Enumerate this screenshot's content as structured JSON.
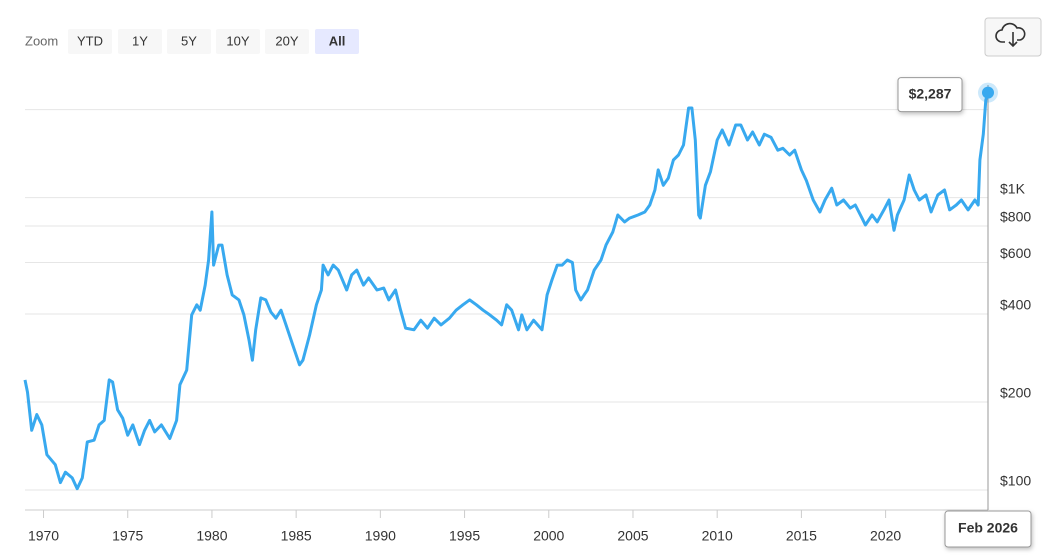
{
  "zoom": {
    "label": "Zoom",
    "buttons": [
      "YTD",
      "1Y",
      "5Y",
      "10Y",
      "20Y",
      "All"
    ],
    "active": "All"
  },
  "chart_data": {
    "type": "line",
    "log_y": true,
    "grid": true,
    "xlim": [
      1968.9,
      2026.08
    ],
    "ylim": [
      85.4,
      2429
    ],
    "xticks": [
      1970,
      1975,
      1980,
      1985,
      1990,
      1995,
      2000,
      2005,
      2010,
      2015,
      2020
    ],
    "yticks": [
      {
        "value": 100,
        "label": "$100"
      },
      {
        "value": 200,
        "label": "$200"
      },
      {
        "value": 400,
        "label": "$400"
      },
      {
        "value": 600,
        "label": "$600"
      },
      {
        "value": 800,
        "label": "$800"
      },
      {
        "value": 1000,
        "label": "$1K"
      },
      {
        "value": 2000,
        "label": null
      }
    ],
    "tooltip": {
      "label": "$2,287",
      "x_label": "Feb 2026"
    },
    "x": [
      1968.9,
      1969.05,
      1969.3,
      1969.6,
      1969.9,
      1970.2,
      1970.7,
      1971.0,
      1971.3,
      1971.7,
      1972.0,
      1972.3,
      1972.6,
      1973.0,
      1973.3,
      1973.6,
      1973.9,
      1974.1,
      1974.4,
      1974.7,
      1975.0,
      1975.3,
      1975.7,
      1976.0,
      1976.3,
      1976.6,
      1977.0,
      1977.5,
      1977.9,
      1978.1,
      1978.5,
      1978.8,
      1979.1,
      1979.3,
      1979.6,
      1979.8,
      1980.0,
      1980.1,
      1980.4,
      1980.6,
      1980.9,
      1981.2,
      1981.6,
      1981.9,
      1982.2,
      1982.4,
      1982.6,
      1982.9,
      1983.2,
      1983.5,
      1983.8,
      1984.1,
      1984.4,
      1984.8,
      1985.2,
      1985.4,
      1985.8,
      1986.2,
      1986.5,
      1986.6,
      1986.9,
      1987.2,
      1987.5,
      1988.0,
      1988.3,
      1988.6,
      1989.0,
      1989.3,
      1989.8,
      1990.2,
      1990.5,
      1990.9,
      1991.2,
      1991.5,
      1992.0,
      1992.4,
      1992.8,
      1993.2,
      1993.6,
      1994.1,
      1994.5,
      1994.9,
      1995.3,
      1995.7,
      1996.1,
      1996.5,
      1996.9,
      1997.2,
      1997.5,
      1997.8,
      1998.2,
      1998.4,
      1998.7,
      1999.1,
      1999.6,
      1999.9,
      2000.2,
      2000.5,
      2000.8,
      2001.1,
      2001.4,
      2001.6,
      2001.9,
      2002.1,
      2002.3,
      2002.7,
      2003.1,
      2003.4,
      2003.8,
      2004.1,
      2004.5,
      2004.8,
      2005.3,
      2005.7,
      2006.0,
      2006.3,
      2006.5,
      2006.8,
      2007.1,
      2007.4,
      2007.7,
      2008.0,
      2008.3,
      2008.5,
      2008.7,
      2008.9,
      2009.0,
      2009.3,
      2009.6,
      2010.0,
      2010.3,
      2010.7,
      2011.1,
      2011.4,
      2011.8,
      2012.1,
      2012.5,
      2012.8,
      2013.2,
      2013.6,
      2013.9,
      2014.3,
      2014.6,
      2015.0,
      2015.3,
      2015.7,
      2016.1,
      2016.4,
      2016.8,
      2017.1,
      2017.5,
      2017.9,
      2018.2,
      2018.6,
      2018.8,
      2019.2,
      2019.5,
      2019.9,
      2020.2,
      2020.5,
      2020.7,
      2021.1,
      2021.4,
      2021.7,
      2022.0,
      2022.4,
      2022.7,
      2023.1,
      2023.5,
      2023.8,
      2024.2,
      2024.5,
      2024.9,
      2025.3,
      2025.5,
      2025.6,
      2025.8,
      2025.95,
      2026.08
    ],
    "series": [
      {
        "color": "#38a9ef",
        "values": [
          238,
          216,
          160,
          181,
          167,
          132,
          122,
          106,
          115,
          110,
          101,
          110,
          146,
          148,
          167,
          173,
          238,
          234,
          188,
          176,
          154,
          167,
          143,
          160,
          173,
          158,
          167,
          150,
          173,
          229,
          257,
          397,
          430,
          412,
          502,
          612,
          893,
          588,
          688,
          688,
          544,
          465,
          447,
          397,
          326,
          278,
          353,
          454,
          447,
          406,
          387,
          412,
          367,
          313,
          268,
          278,
          339,
          430,
          483,
          588,
          544,
          588,
          565,
          483,
          544,
          565,
          502,
          531,
          483,
          491,
          447,
          483,
          412,
          358,
          353,
          381,
          358,
          387,
          367,
          387,
          412,
          430,
          447,
          430,
          412,
          397,
          381,
          367,
          430,
          412,
          353,
          397,
          353,
          381,
          353,
          465,
          525,
          588,
          588,
          612,
          600,
          483,
          447,
          465,
          483,
          565,
          612,
          688,
          763,
          872,
          826,
          851,
          872,
          893,
          944,
          1062,
          1244,
          1102,
          1167,
          1345,
          1399,
          1514,
          2027,
          2027,
          1575,
          872,
          851,
          1102,
          1228,
          1575,
          1704,
          1514,
          1772,
          1772,
          1575,
          1677,
          1514,
          1649,
          1608,
          1453,
          1475,
          1399,
          1453,
          1244,
          1144,
          982,
          893,
          982,
          1077,
          944,
          982,
          921,
          944,
          851,
          806,
          872,
          826,
          908,
          982,
          773,
          872,
          982,
          1195,
          1062,
          982,
          1021,
          893,
          1021,
          1062,
          908,
          944,
          982,
          908,
          982,
          944,
          1345,
          1649,
          2158,
          2287
        ]
      }
    ]
  }
}
